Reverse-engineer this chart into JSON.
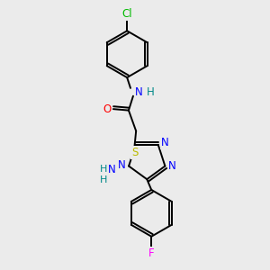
{
  "bg_color": "#ebebeb",
  "bond_color": "#000000",
  "atoms": {
    "Cl": {
      "color": "#00bb00"
    },
    "N": {
      "color": "#0000ff"
    },
    "O": {
      "color": "#ff0000"
    },
    "S": {
      "color": "#bbbb00"
    },
    "F": {
      "color": "#ff00ff"
    },
    "NH": {
      "color": "#008888"
    },
    "H": {
      "color": "#008888"
    }
  },
  "figsize": [
    3.0,
    3.0
  ],
  "dpi": 100,
  "lw": 1.4,
  "fs": 8.5
}
